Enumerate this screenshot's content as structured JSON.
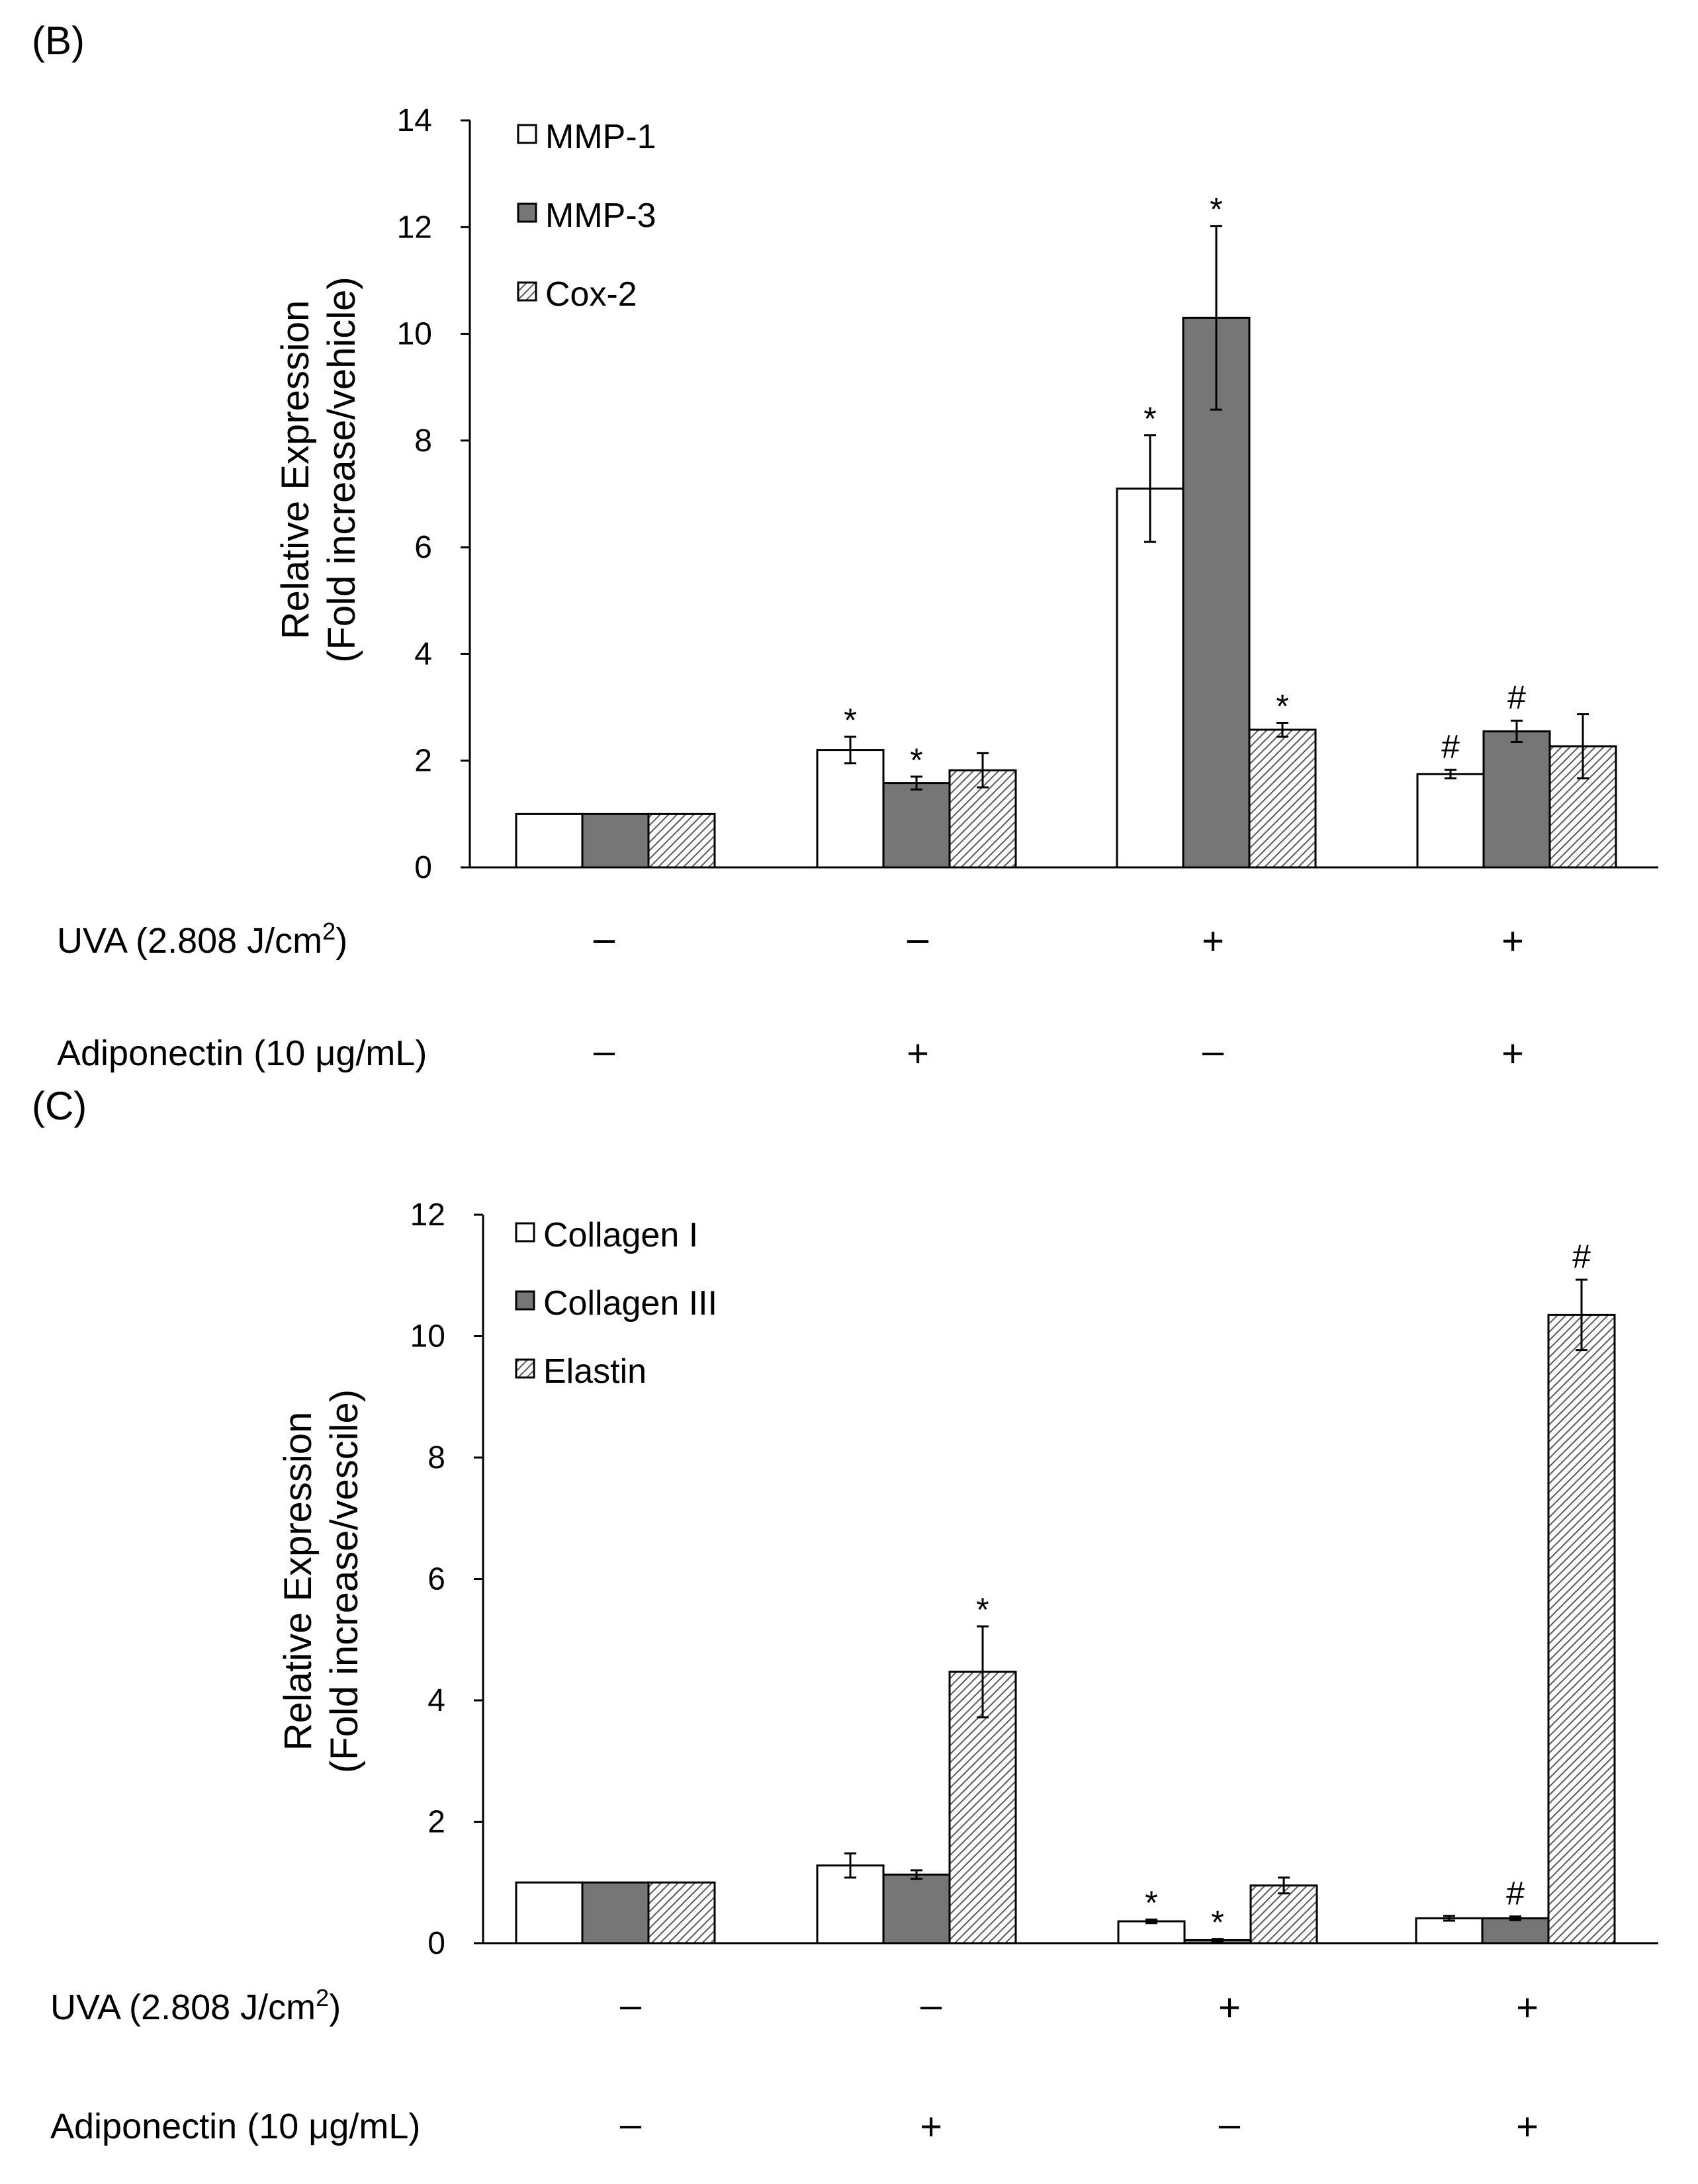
{
  "chart_data": [
    {
      "panel": "(B)",
      "type": "bar",
      "ylabel_line1": "Relative Expression",
      "ylabel_line2": "(Fold increase/vehicle)",
      "ylim": [
        0,
        14
      ],
      "yticks": [
        0,
        2,
        4,
        6,
        8,
        10,
        12,
        14
      ],
      "legend_position": "top-left",
      "categories": [
        "1",
        "2",
        "3",
        "4"
      ],
      "series": [
        {
          "name": "MMP-1",
          "pattern": "white",
          "values": [
            1.0,
            2.2,
            7.1,
            1.75
          ],
          "errors": [
            0,
            0.25,
            1.0,
            0.08
          ],
          "marks": [
            "",
            "*",
            "*",
            "#"
          ]
        },
        {
          "name": "MMP-3",
          "pattern": "gray",
          "values": [
            1.0,
            1.58,
            10.3,
            2.55
          ],
          "errors": [
            0,
            0.12,
            1.72,
            0.2
          ],
          "marks": [
            "",
            "*",
            "*",
            "#"
          ]
        },
        {
          "name": "Cox-2",
          "pattern": "hatch",
          "values": [
            1.0,
            1.82,
            2.58,
            2.27
          ],
          "errors": [
            0,
            0.32,
            0.13,
            0.6
          ],
          "marks": [
            "",
            "",
            "*",
            ""
          ]
        }
      ],
      "conditions": [
        {
          "label": "UVA (2.808 J/cm",
          "sup": "2",
          "suffix": ")",
          "signs": [
            "–",
            "–",
            "+",
            "+"
          ]
        },
        {
          "label": "Adiponectin (10 μg/mL)",
          "sup": "",
          "suffix": "",
          "signs": [
            "–",
            "+",
            "–",
            "+"
          ]
        }
      ]
    },
    {
      "panel": "(C)",
      "type": "bar",
      "ylabel_line1": "Relative Expression",
      "ylabel_line2": "(Fold increase/vescile)",
      "ylim": [
        0,
        12
      ],
      "yticks": [
        0,
        2,
        4,
        6,
        8,
        10,
        12
      ],
      "legend_position": "top-left",
      "categories": [
        "1",
        "2",
        "3",
        "4"
      ],
      "series": [
        {
          "name": "Collagen I",
          "pattern": "white",
          "values": [
            1.0,
            1.28,
            0.36,
            0.41
          ],
          "errors": [
            0,
            0.2,
            0.03,
            0.04
          ],
          "marks": [
            "",
            "",
            "*",
            ""
          ]
        },
        {
          "name": "Collagen III",
          "pattern": "gray",
          "values": [
            1.0,
            1.13,
            0.05,
            0.41
          ],
          "errors": [
            0,
            0.07,
            0.02,
            0.03
          ],
          "marks": [
            "",
            "",
            "*",
            "#"
          ]
        },
        {
          "name": "Elastin",
          "pattern": "hatch",
          "values": [
            1.0,
            4.47,
            0.95,
            10.35
          ],
          "errors": [
            0,
            0.75,
            0.13,
            0.58
          ],
          "marks": [
            "",
            "*",
            "",
            "#"
          ]
        }
      ],
      "conditions": [
        {
          "label": "UVA (2.808 J/cm",
          "sup": "2",
          "suffix": ")",
          "signs": [
            "–",
            "–",
            "+",
            "+"
          ]
        },
        {
          "label": "Adiponectin (10 μg/mL)",
          "sup": "",
          "suffix": "",
          "signs": [
            "–",
            "+",
            "–",
            "+"
          ]
        }
      ]
    }
  ],
  "colors": {
    "bar_white": "#ffffff",
    "bar_gray": "#767676",
    "hatch_line": "#5a5a5a",
    "axis": "#000000"
  }
}
